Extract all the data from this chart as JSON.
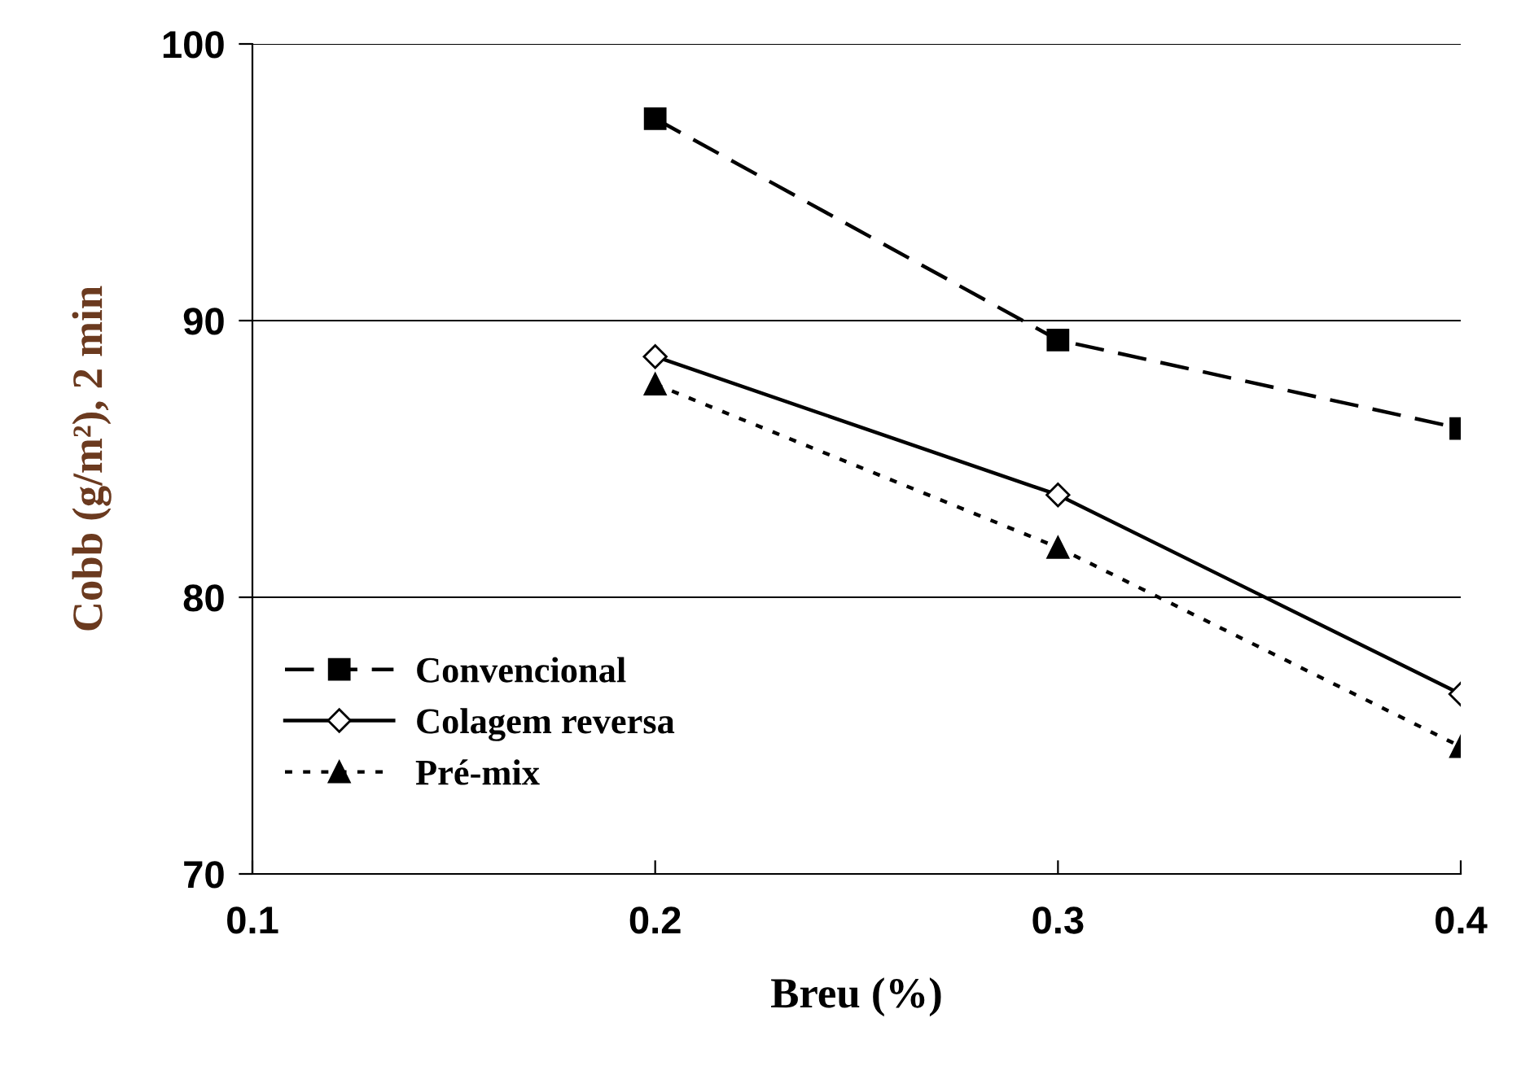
{
  "chart_data": {
    "type": "line",
    "xlabel": "Breu (%)",
    "ylabel": "Cobb (g/m²), 2 min",
    "x": [
      0.2,
      0.3,
      0.4
    ],
    "series": [
      {
        "name": "Convencional",
        "color": "#000000",
        "marker": "square",
        "line_style": "dashed",
        "values": [
          97.3,
          89.3,
          86.1
        ]
      },
      {
        "name": "Colagem reversa",
        "color": "#000000",
        "marker": "diamond",
        "line_style": "solid",
        "values": [
          88.7,
          83.7,
          76.5
        ]
      },
      {
        "name": "Pré-mix",
        "color": "#000000",
        "marker": "triangle",
        "line_style": "dotted",
        "values": [
          87.7,
          81.8,
          74.6
        ]
      }
    ],
    "xlim": [
      0.1,
      0.4
    ],
    "xticks": [
      0.1,
      0.2,
      0.3,
      0.4
    ],
    "ylim": [
      70,
      100
    ],
    "yticks": [
      70,
      80,
      90,
      100
    ],
    "grid": "y",
    "legend": "left"
  }
}
